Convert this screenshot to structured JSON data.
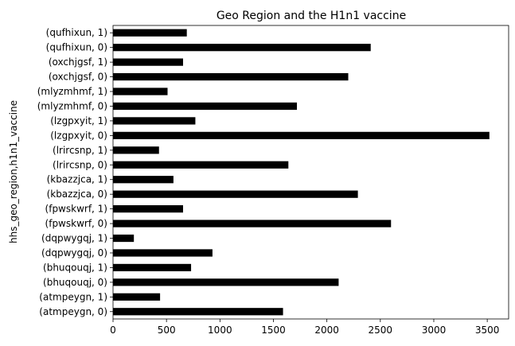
{
  "chart_data": {
    "type": "bar",
    "orientation": "horizontal",
    "title": "Geo Region and the H1n1 vaccine",
    "ylabel": "hhs_geo_region,h1n1_vaccine",
    "xlabel": "",
    "xlim": [
      0,
      3700
    ],
    "xticks": [
      0,
      500,
      1000,
      1500,
      2000,
      2500,
      3000,
      3500
    ],
    "xtick_labels": [
      "0",
      "500",
      "1000",
      "1500",
      "2000",
      "2500",
      "3000",
      "3500"
    ],
    "grid": false,
    "bar_color": "#000000",
    "categories": [
      "(atmpeygn, 0)",
      "(atmpeygn, 1)",
      "(bhuqouqj, 0)",
      "(bhuqouqj, 1)",
      "(dqpwygqj, 0)",
      "(dqpwygqj, 1)",
      "(fpwskwrf, 0)",
      "(fpwskwrf, 1)",
      "(kbazzjca, 0)",
      "(kbazzjca, 1)",
      "(lrircsnp, 0)",
      "(lrircsnp, 1)",
      "(lzgpxyit, 0)",
      "(lzgpxyit, 1)",
      "(mlyzmhmf, 0)",
      "(mlyzmhmf, 1)",
      "(oxchjgsf, 0)",
      "(oxchjgsf, 1)",
      "(qufhixun, 0)",
      "(qufhixun, 1)"
    ],
    "values": [
      1590,
      440,
      2110,
      730,
      930,
      195,
      2600,
      655,
      2290,
      565,
      1640,
      430,
      3520,
      770,
      1720,
      510,
      2200,
      655,
      2410,
      690
    ]
  }
}
